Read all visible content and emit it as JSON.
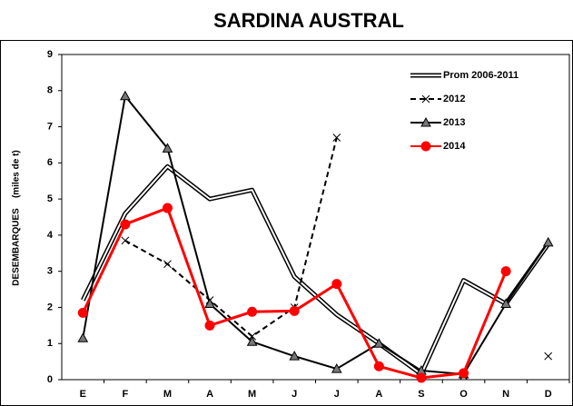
{
  "chart_data": {
    "type": "line",
    "title": "SARDINA AUSTRAL",
    "y_label": "DESEMBARQUES    (miles de t)",
    "categories": [
      "E",
      "F",
      "M",
      "A",
      "M",
      "J",
      "J",
      "A",
      "S",
      "O",
      "N",
      "D"
    ],
    "ylim": [
      0,
      9
    ],
    "yticks": [
      0,
      1,
      2,
      3,
      4,
      5,
      6,
      7,
      8,
      9
    ],
    "grid": false,
    "legend": "top-right",
    "series": [
      {
        "name": "Prom 2006-2011",
        "color": "#000000",
        "style": "double",
        "marker": "none",
        "values": [
          2.2,
          4.6,
          5.9,
          5.0,
          5.25,
          2.85,
          1.8,
          1.0,
          0.15,
          2.75,
          2.1,
          3.75
        ]
      },
      {
        "name": "2012",
        "color": "#000000",
        "style": "dashed",
        "marker": "x",
        "values": [
          null,
          3.85,
          3.2,
          2.2,
          1.2,
          2.0,
          6.7,
          null,
          null,
          0.1,
          null,
          0.65
        ]
      },
      {
        "name": "2013",
        "color": "#000000",
        "style": "solid",
        "marker": "triangle",
        "values": [
          1.15,
          7.85,
          6.4,
          2.1,
          1.05,
          0.65,
          0.3,
          1.0,
          0.25,
          0.15,
          2.1,
          3.8
        ]
      },
      {
        "name": "2014",
        "color": "#ff0000",
        "style": "solid",
        "marker": "circle",
        "values": [
          1.85,
          4.3,
          4.75,
          1.5,
          1.88,
          1.9,
          2.65,
          0.37,
          0.05,
          0.18,
          3.0,
          null
        ]
      }
    ]
  }
}
